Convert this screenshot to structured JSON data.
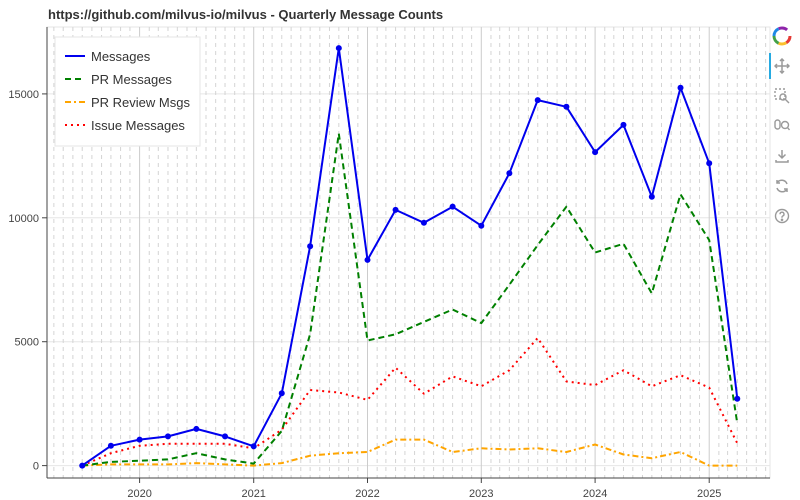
{
  "title": "https://github.com/milvus-io/milvus - Quarterly Message Counts",
  "colors": {
    "messages": "#0000ee",
    "pr_messages": "#008000",
    "pr_review": "#ffa500",
    "issue": "#ff0000",
    "grid": "#e6e6e6",
    "axis": "#444444"
  },
  "toolbar": {
    "icons": [
      "bokeh-logo-icon",
      "pan-icon",
      "box-zoom-icon",
      "wheel-zoom-icon",
      "save-icon",
      "reset-icon",
      "help-icon"
    ]
  },
  "chart_data": {
    "type": "line",
    "title": "https://github.com/milvus-io/milvus - Quarterly Message Counts",
    "xlabel": "",
    "ylabel": "",
    "x": [
      "2019-07-01",
      "2019-10-01",
      "2020-01-01",
      "2020-04-01",
      "2020-07-01",
      "2020-10-01",
      "2021-01-01",
      "2021-04-01",
      "2021-07-01",
      "2021-10-01",
      "2022-01-01",
      "2022-04-01",
      "2022-07-01",
      "2022-10-01",
      "2023-01-01",
      "2023-04-01",
      "2023-07-01",
      "2023-10-01",
      "2024-01-01",
      "2024-04-01",
      "2024-07-01",
      "2024-10-01",
      "2025-01-01",
      "2025-04-01"
    ],
    "xticks": [
      "2020",
      "2021",
      "2022",
      "2023",
      "2024",
      "2025"
    ],
    "yticks": [
      0,
      5000,
      10000,
      15000
    ],
    "ylim": [
      -500,
      17700
    ],
    "xlim": [
      "2019-03-10",
      "2025-07-15"
    ],
    "grid": true,
    "legend_position": "top-left",
    "series": [
      {
        "name": "Messages",
        "style": "solid",
        "markers": true,
        "values": [
          0,
          800,
          1050,
          1180,
          1480,
          1180,
          780,
          2920,
          8850,
          16850,
          8300,
          10320,
          9800,
          10450,
          9680,
          11800,
          14750,
          14480,
          12650,
          13750,
          10850,
          15250,
          12200,
          2700
        ]
      },
      {
        "name": "PR Messages",
        "style": "dashed",
        "markers": false,
        "values": [
          0,
          150,
          200,
          250,
          500,
          250,
          80,
          1400,
          5300,
          13400,
          5050,
          5300,
          5800,
          6300,
          5750,
          7300,
          8900,
          10450,
          8600,
          8950,
          6950,
          10950,
          9100,
          1700
        ]
      },
      {
        "name": "PR Review Msgs",
        "style": "dashdot",
        "markers": false,
        "values": [
          0,
          50,
          50,
          50,
          100,
          50,
          0,
          100,
          400,
          500,
          550,
          1050,
          1050,
          550,
          700,
          650,
          700,
          550,
          850,
          450,
          300,
          550,
          0,
          0
        ]
      },
      {
        "name": "Issue Messages",
        "style": "dotted",
        "markers": false,
        "values": [
          0,
          500,
          800,
          880,
          880,
          880,
          700,
          1450,
          3050,
          2950,
          2650,
          3950,
          2900,
          3600,
          3200,
          3850,
          5150,
          3400,
          3250,
          3850,
          3200,
          3650,
          3150,
          900
        ]
      }
    ]
  }
}
